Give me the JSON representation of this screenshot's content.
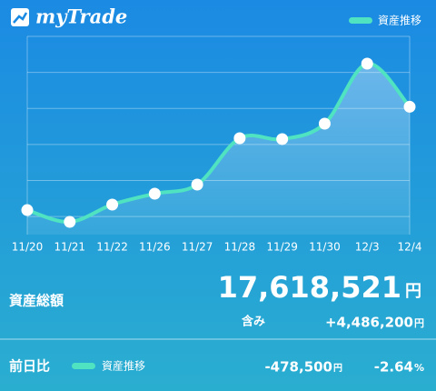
{
  "header": {
    "logo": "myTrade"
  },
  "chart_data": {
    "type": "line",
    "categories": [
      "11/20",
      "11/21",
      "11/22",
      "11/26",
      "11/27",
      "11/28",
      "11/29",
      "11/30",
      "12/3",
      "12/4"
    ],
    "series": [
      {
        "name": "資産推移",
        "color": "#4fe3c1",
        "values": [
          16472000,
          16341000,
          16533000,
          16654000,
          16755000,
          17270000,
          17260000,
          17431000,
          18097021,
          17618521
        ]
      }
    ],
    "ylim": [
      16200000,
      18400000
    ],
    "yticks": [
      16400000,
      16800000,
      17200000,
      17600000,
      18000000,
      18400000
    ],
    "grid": true,
    "legend": "top-right"
  },
  "summary": {
    "label": "資産総額",
    "total": "17,618,521",
    "total_unit": "円",
    "unrealized_label": "含み",
    "unrealized": "+4,486,200",
    "unrealized_unit": "円"
  },
  "daily": {
    "label": "前日比",
    "change": "-478,500",
    "change_unit": "円",
    "change_pct": "-2.64",
    "pct_unit": "%"
  }
}
